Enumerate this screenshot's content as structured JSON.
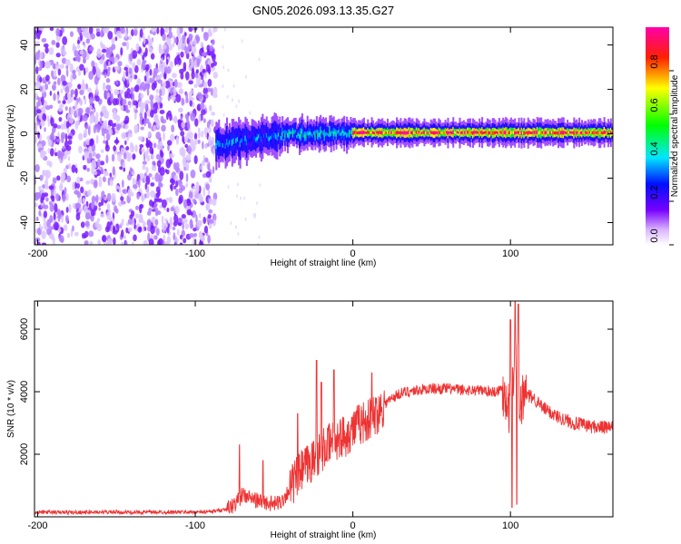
{
  "title": "GN05.2026.093.13.35.G27",
  "chart_data": [
    {
      "type": "heatmap",
      "name": "spectrogram",
      "xlabel": "Height of straight line (km)",
      "ylabel": "Frequency (Hz)",
      "xlim": [
        -202,
        165
      ],
      "ylim": [
        -50,
        48
      ],
      "xticks": [
        -200,
        -100,
        0,
        100
      ],
      "yticks": [
        -40,
        -20,
        0,
        20,
        40
      ],
      "colorbar": {
        "label": "Normalized spectral amplitude",
        "range": [
          0,
          1
        ],
        "ticks": [
          "0.0",
          "0.2",
          "0.4",
          "0.6",
          "0.8"
        ],
        "tick_values": [
          0,
          0.2,
          0.4,
          0.6,
          0.8
        ]
      },
      "regions": [
        {
          "name": "noise",
          "x_range": [
            -202,
            -87
          ],
          "freq_range": [
            -50,
            48
          ],
          "amplitude": 0.1
        },
        {
          "name": "onset",
          "x_range": [
            -87,
            -45
          ],
          "center_freq": -5,
          "halfwidth_hz": 4,
          "amplitude": 0.35
        },
        {
          "name": "track-mid",
          "x_range": [
            -45,
            0
          ],
          "center_freq": 0,
          "halfwidth_hz": 3,
          "amplitude": 0.45
        },
        {
          "name": "track-stable",
          "x_range": [
            0,
            165
          ],
          "center_freq": 0.5,
          "halfwidth_hz": 2.5,
          "amplitude": 0.9
        }
      ]
    },
    {
      "type": "line",
      "name": "snr",
      "xlabel": "Height of straight line (km)",
      "ylabel": "SNR (10 * v/v)",
      "xlim": [
        -202,
        165
      ],
      "ylim": [
        0,
        6900
      ],
      "xticks": [
        -200,
        -100,
        0,
        100
      ],
      "yticks": [
        2000,
        4000,
        6000
      ],
      "color": "#ee3333",
      "x": [
        -202,
        -180,
        -160,
        -140,
        -120,
        -100,
        -90,
        -80,
        -75,
        -70,
        -65,
        -60,
        -55,
        -50,
        -45,
        -40,
        -35,
        -30,
        -25,
        -20,
        -15,
        -10,
        -5,
        0,
        5,
        10,
        15,
        20,
        25,
        30,
        35,
        40,
        50,
        60,
        70,
        80,
        90,
        95,
        98,
        100,
        102,
        104,
        106,
        108,
        110,
        115,
        120,
        130,
        140,
        150,
        160,
        165
      ],
      "values": [
        150,
        140,
        150,
        145,
        150,
        150,
        160,
        250,
        400,
        700,
        600,
        500,
        450,
        400,
        500,
        900,
        1300,
        1600,
        1800,
        2100,
        2300,
        2500,
        2600,
        2800,
        3000,
        3100,
        3300,
        3600,
        3800,
        3950,
        4000,
        4050,
        4100,
        4100,
        4050,
        4050,
        4000,
        4100,
        3800,
        3200,
        4600,
        5500,
        3300,
        3800,
        3900,
        3800,
        3500,
        3200,
        3000,
        2900,
        2850,
        2850
      ],
      "spikes": [
        {
          "x": -72,
          "peak": 2300
        },
        {
          "x": -57,
          "peak": 1800
        },
        {
          "x": -35,
          "peak": 3300
        },
        {
          "x": -23,
          "peak": 5000
        },
        {
          "x": -20,
          "peak": 4300
        },
        {
          "x": -12,
          "peak": 4700
        },
        {
          "x": 12,
          "peak": 4600
        },
        {
          "x": 100,
          "peak": 6300
        },
        {
          "x": 103,
          "peak": 6900
        },
        {
          "x": 105,
          "peak": 6800
        }
      ],
      "dips": [
        {
          "x": 101,
          "low": 300
        },
        {
          "x": 104,
          "low": 400
        }
      ]
    }
  ]
}
